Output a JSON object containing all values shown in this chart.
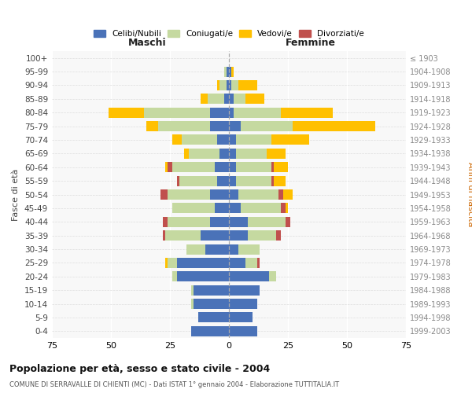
{
  "age_groups": [
    "0-4",
    "5-9",
    "10-14",
    "15-19",
    "20-24",
    "25-29",
    "30-34",
    "35-39",
    "40-44",
    "45-49",
    "50-54",
    "55-59",
    "60-64",
    "65-69",
    "70-74",
    "75-79",
    "80-84",
    "85-89",
    "90-94",
    "95-99",
    "100+"
  ],
  "birth_years": [
    "1999-2003",
    "1994-1998",
    "1989-1993",
    "1984-1988",
    "1979-1983",
    "1974-1978",
    "1969-1973",
    "1964-1968",
    "1959-1963",
    "1954-1958",
    "1949-1953",
    "1944-1948",
    "1939-1943",
    "1934-1938",
    "1929-1933",
    "1924-1928",
    "1919-1923",
    "1914-1918",
    "1909-1913",
    "1904-1908",
    "≤ 1903"
  ],
  "males": {
    "celibi": [
      16,
      13,
      15,
      15,
      22,
      22,
      10,
      12,
      8,
      6,
      8,
      5,
      6,
      4,
      5,
      8,
      8,
      2,
      1,
      1,
      0
    ],
    "coniugati": [
      0,
      0,
      1,
      1,
      2,
      4,
      8,
      15,
      18,
      18,
      18,
      16,
      18,
      13,
      15,
      22,
      28,
      7,
      3,
      1,
      0
    ],
    "vedovi": [
      0,
      0,
      0,
      0,
      0,
      1,
      0,
      0,
      0,
      0,
      0,
      0,
      1,
      2,
      4,
      5,
      15,
      3,
      1,
      0,
      0
    ],
    "divorziati": [
      0,
      0,
      0,
      0,
      0,
      0,
      0,
      1,
      2,
      0,
      3,
      1,
      2,
      0,
      0,
      0,
      0,
      0,
      0,
      0,
      0
    ]
  },
  "females": {
    "nubili": [
      12,
      10,
      12,
      13,
      17,
      7,
      4,
      8,
      8,
      5,
      4,
      3,
      3,
      3,
      3,
      5,
      2,
      2,
      1,
      1,
      0
    ],
    "coniugate": [
      0,
      0,
      0,
      0,
      3,
      5,
      9,
      12,
      16,
      17,
      17,
      15,
      15,
      13,
      15,
      22,
      20,
      5,
      3,
      0,
      0
    ],
    "vedove": [
      0,
      0,
      0,
      0,
      0,
      0,
      0,
      0,
      0,
      1,
      4,
      5,
      6,
      8,
      16,
      35,
      22,
      8,
      8,
      1,
      0
    ],
    "divorziate": [
      0,
      0,
      0,
      0,
      0,
      1,
      0,
      2,
      2,
      2,
      2,
      1,
      1,
      0,
      0,
      0,
      0,
      0,
      0,
      0,
      0
    ]
  },
  "colors": {
    "celibi": "#4a72b8",
    "coniugati": "#c5d9a0",
    "vedovi": "#ffc000",
    "divorziati": "#c0504d"
  },
  "xlim": 75,
  "title": "Popolazione per età, sesso e stato civile - 2004",
  "subtitle": "COMUNE DI SERRAVALLE DI CHIENTI (MC) - Dati ISTAT 1° gennaio 2004 - Elaborazione TUTTITALIA.IT",
  "ylabel": "Fasce di età",
  "ylabel_right": "Anni di nascita",
  "xlabel_left": "Maschi",
  "xlabel_right": "Femmine",
  "legend_labels": [
    "Celibi/Nubili",
    "Coniugati/e",
    "Vedovi/e",
    "Divorziati/e"
  ]
}
